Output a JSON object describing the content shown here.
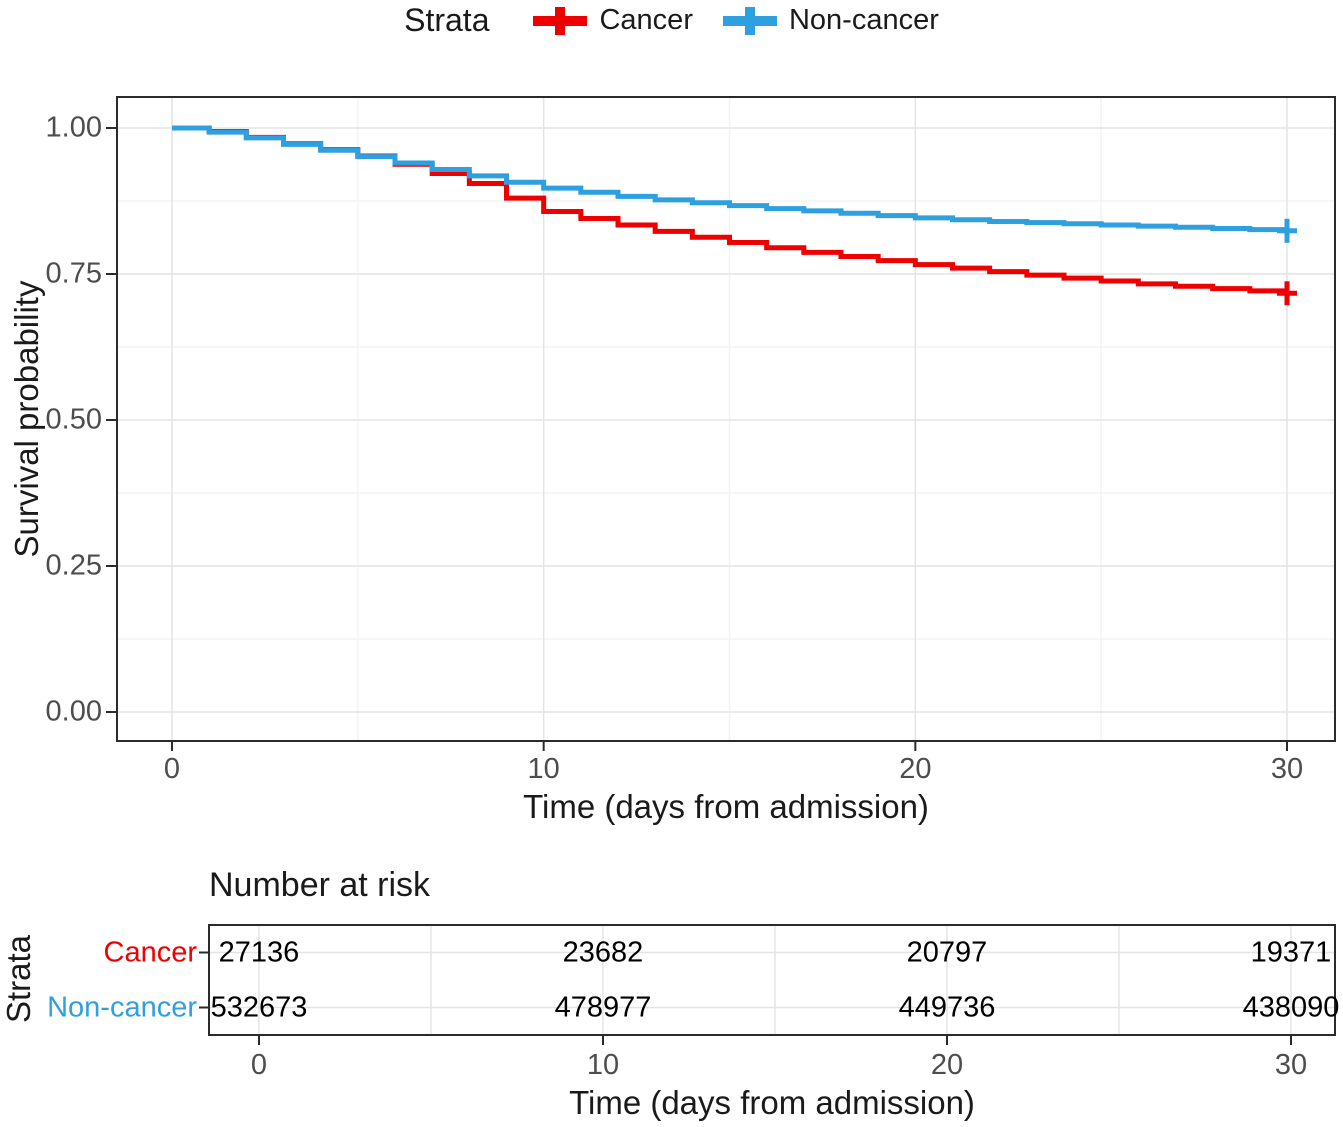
{
  "legend": {
    "title": "Strata",
    "items": [
      {
        "label": "Cancer",
        "color": "#EE0000"
      },
      {
        "label": "Non-cancer",
        "color": "#2E9FDF"
      }
    ]
  },
  "chart_data": {
    "type": "line",
    "subtype": "kaplan-meier-step",
    "title": "",
    "xlabel": "Time (days from admission)",
    "ylabel": "Survival probability",
    "xlim": [
      0,
      30
    ],
    "ylim": [
      0,
      1
    ],
    "x_ticks": [
      0,
      10,
      20,
      30
    ],
    "x_minor_gridlines": [
      5,
      15,
      25
    ],
    "y_ticks": [
      1.0,
      0.75,
      0.5,
      0.25,
      0.0
    ],
    "y_tick_labels": [
      "1.00",
      "0.75",
      "0.50",
      "0.25",
      "0.00"
    ],
    "y_minor_gridlines": [
      0.875,
      0.625,
      0.375,
      0.125
    ],
    "grid": true,
    "legend_position": "top",
    "x": [
      0,
      1,
      2,
      3,
      4,
      5,
      6,
      7,
      8,
      9,
      10,
      11,
      12,
      13,
      14,
      15,
      16,
      17,
      18,
      19,
      20,
      21,
      22,
      23,
      24,
      25,
      26,
      27,
      28,
      29,
      30
    ],
    "series": [
      {
        "name": "Cancer",
        "color": "#EE0000",
        "censor_mark_at_end": true,
        "values": [
          1.0,
          0.994,
          0.984,
          0.973,
          0.963,
          0.952,
          0.938,
          0.922,
          0.905,
          0.88,
          0.857,
          0.845,
          0.834,
          0.823,
          0.813,
          0.804,
          0.795,
          0.787,
          0.78,
          0.773,
          0.766,
          0.76,
          0.754,
          0.748,
          0.743,
          0.738,
          0.733,
          0.729,
          0.725,
          0.721,
          0.717
        ]
      },
      {
        "name": "Non-cancer",
        "color": "#2E9FDF",
        "censor_mark_at_end": true,
        "values": [
          1.0,
          0.993,
          0.983,
          0.972,
          0.962,
          0.951,
          0.94,
          0.929,
          0.918,
          0.907,
          0.897,
          0.89,
          0.883,
          0.877,
          0.872,
          0.867,
          0.862,
          0.858,
          0.854,
          0.85,
          0.846,
          0.843,
          0.84,
          0.838,
          0.836,
          0.834,
          0.832,
          0.83,
          0.828,
          0.826,
          0.824
        ]
      }
    ]
  },
  "risk_table": {
    "title": "Number at risk",
    "axis_label": "Strata",
    "xlabel": "Time (days from admission)",
    "x_ticks": [
      0,
      10,
      20,
      30
    ],
    "rows": [
      {
        "label": "Cancer",
        "color": "#EE0000",
        "values": [
          "27136",
          "23682",
          "20797",
          "19371"
        ]
      },
      {
        "label": "Non-cancer",
        "color": "#2E9FDF",
        "values": [
          "532673",
          "478977",
          "449736",
          "438090"
        ]
      }
    ]
  },
  "style_colors": {
    "grid_major": "#E4E4E4",
    "grid_minor": "#F3F3F3",
    "panel_border": "#2B2B2B",
    "tick_text": "#4d4d4d"
  }
}
